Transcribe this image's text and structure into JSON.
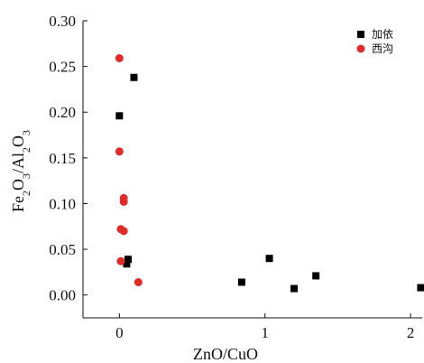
{
  "chart_data": {
    "type": "scatter",
    "xlabel": "ZnO/CuO",
    "ylabel_parts": [
      {
        "text": "Fe",
        "sub": false
      },
      {
        "text": "2",
        "sub": true
      },
      {
        "text": "O",
        "sub": false
      },
      {
        "text": "3",
        "sub": true
      },
      {
        "text": "/Al",
        "sub": false
      },
      {
        "text": "2",
        "sub": true
      },
      {
        "text": "O",
        "sub": false
      },
      {
        "text": "3",
        "sub": true
      }
    ],
    "xlim": [
      -0.25,
      2.08
    ],
    "ylim": [
      -0.025,
      0.3
    ],
    "x_ticks": [
      0,
      1,
      2
    ],
    "x_tick_labels": [
      "0",
      "1",
      "2"
    ],
    "y_ticks": [
      0.0,
      0.05,
      0.1,
      0.15,
      0.2,
      0.25,
      0.3
    ],
    "y_tick_labels": [
      "0.00",
      "0.05",
      "0.10",
      "0.15",
      "0.20",
      "0.25",
      "0.30"
    ],
    "grid": false,
    "legend_position": "top-right",
    "series": [
      {
        "name": "加依",
        "marker": "square",
        "color": "#000000",
        "points": [
          {
            "x": 0.0,
            "y": 0.196
          },
          {
            "x": 0.1,
            "y": 0.238
          },
          {
            "x": 0.06,
            "y": 0.039
          },
          {
            "x": 0.05,
            "y": 0.034
          },
          {
            "x": 0.84,
            "y": 0.014
          },
          {
            "x": 1.03,
            "y": 0.04
          },
          {
            "x": 1.2,
            "y": 0.007
          },
          {
            "x": 1.35,
            "y": 0.021
          },
          {
            "x": 2.07,
            "y": 0.008
          }
        ]
      },
      {
        "name": "西沟",
        "marker": "circle",
        "color": "#e02b2b",
        "points": [
          {
            "x": 0.0,
            "y": 0.259
          },
          {
            "x": 0.0,
            "y": 0.157
          },
          {
            "x": 0.03,
            "y": 0.106
          },
          {
            "x": 0.03,
            "y": 0.102
          },
          {
            "x": 0.01,
            "y": 0.072
          },
          {
            "x": 0.03,
            "y": 0.07
          },
          {
            "x": 0.01,
            "y": 0.037
          },
          {
            "x": 0.13,
            "y": 0.014
          }
        ]
      }
    ]
  }
}
